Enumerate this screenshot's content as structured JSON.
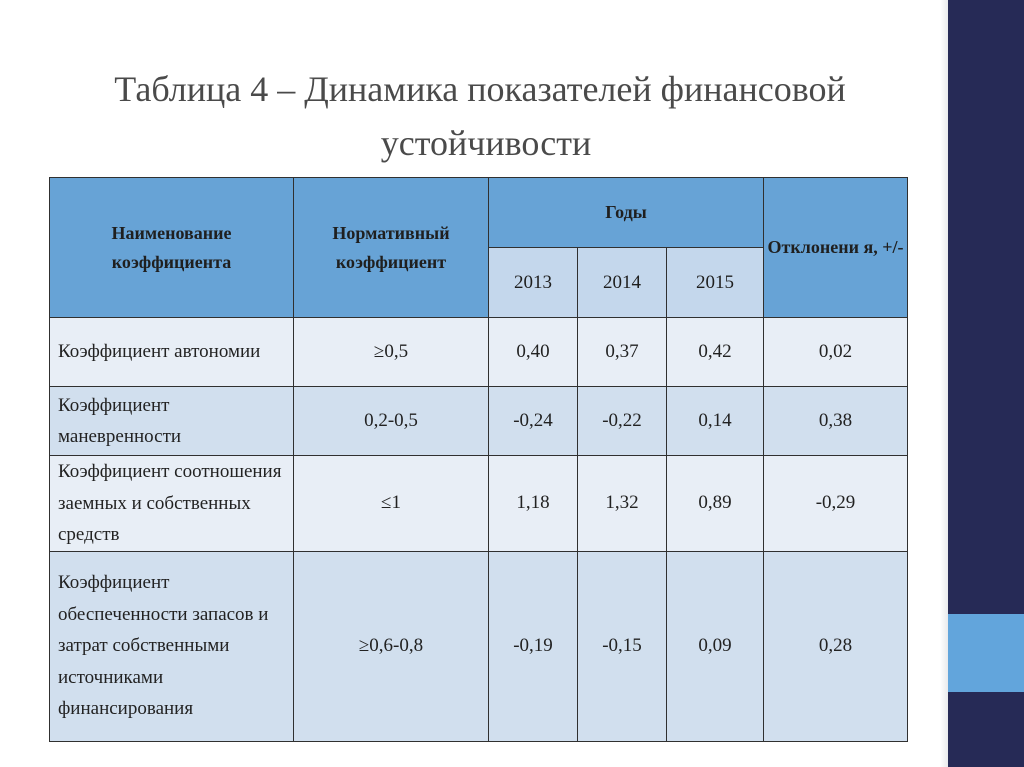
{
  "title": {
    "line1": "Таблица 4 – Динамика показателей финансовой",
    "line2": "устойчивости"
  },
  "table": {
    "headers": {
      "name": "Наименование коэффициента",
      "normative": "Нормативный коэффициент",
      "years_group": "Годы",
      "years": [
        "2013",
        "2014",
        "2015"
      ],
      "deviation": "Отклонени я, +/-"
    },
    "rows": [
      {
        "name": "Коэффициент автономии",
        "normative": "≥0,5",
        "values": [
          "0,40",
          "0,37",
          "0,42"
        ],
        "deviation": "0,02"
      },
      {
        "name": "Коэффициент маневренности",
        "normative": "0,2-0,5",
        "values": [
          "-0,24",
          "-0,22",
          "0,14"
        ],
        "deviation": "0,38"
      },
      {
        "name": "Коэффициент соотношения заемных и собственных средств",
        "normative": "≤1",
        "values": [
          "1,18",
          "1,32",
          "0,89"
        ],
        "deviation": "-0,29"
      },
      {
        "name": "Коэффициент обеспеченности запасов и затрат собственными источниками финансирования",
        "normative": "≥0,6-0,8",
        "values": [
          "-0,19",
          "-0,15",
          "0,09"
        ],
        "deviation": "0,28"
      }
    ]
  },
  "colors": {
    "header_blue": "#67a3d6",
    "side_bar_navy": "#262a56",
    "side_accent_blue": "#62a5dc"
  }
}
